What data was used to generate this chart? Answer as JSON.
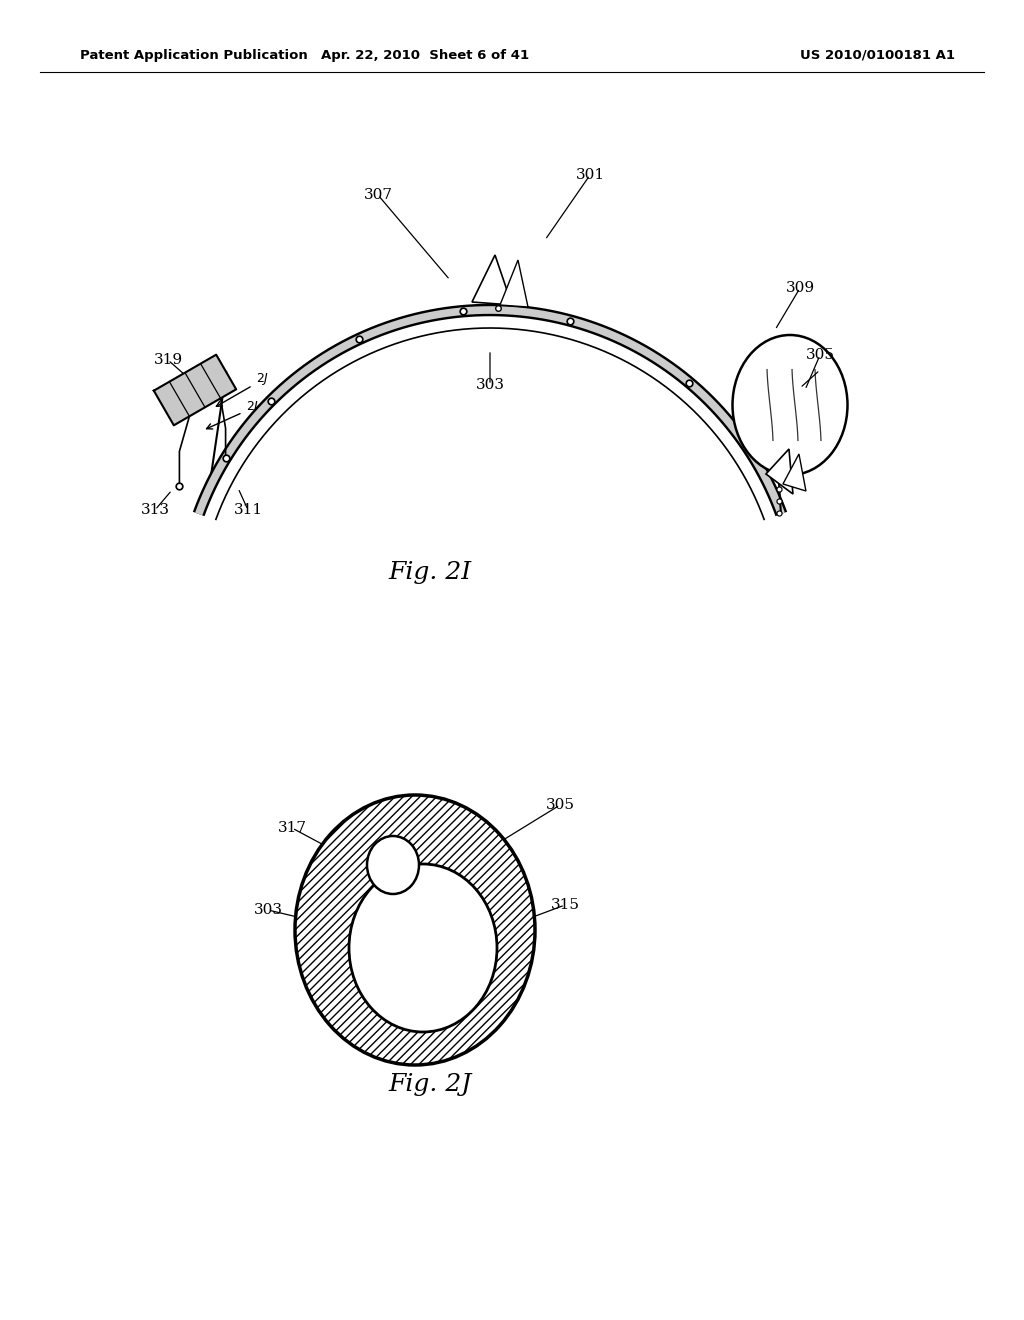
{
  "bg_color": "#ffffff",
  "header_left": "Patent Application Publication",
  "header_mid": "Apr. 22, 2010  Sheet 6 of 41",
  "header_right": "US 2010/0100181 A1",
  "fig_label_I": "Fig. 2I",
  "fig_label_J": "Fig. 2J"
}
